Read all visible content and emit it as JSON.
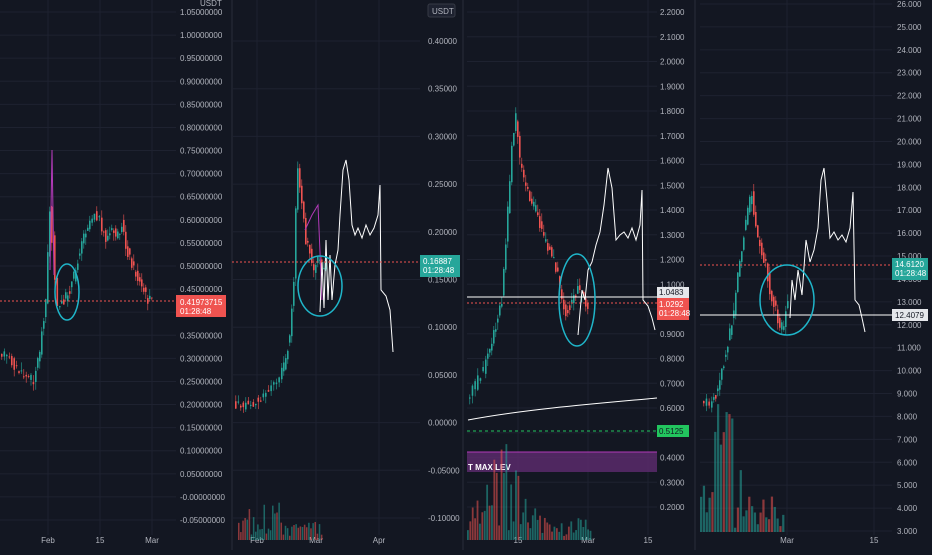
{
  "theme": {
    "background": "#131722",
    "grid": "#1e2230",
    "axis_text": "#b2b5be",
    "separator": "#2a2e39",
    "bull": "#26a69a",
    "bear": "#ef5350",
    "drawing": "#ffffff",
    "circle": "#1fb5c9",
    "ma": "#b23ab8"
  },
  "chart_data": [
    {
      "type": "candlestick",
      "title": "",
      "unit_label": "USDT",
      "y_ticks": [
        1.05,
        1.0,
        0.95,
        0.9,
        0.85,
        0.8,
        0.75,
        0.7,
        0.65,
        0.6,
        0.55,
        0.5,
        0.45,
        0.4,
        0.35,
        0.3,
        0.25,
        0.2,
        0.15,
        0.1,
        0.05,
        -0.0,
        -0.05
      ],
      "y_tick_labels": [
        "1.05000000",
        "1.00000000",
        "0.95000000",
        "0.90000000",
        "0.85000000",
        "0.80000000",
        "0.75000000",
        "0.70000000",
        "0.65000000",
        "0.60000000",
        "0.55000000",
        "0.50000000",
        "0.45000000",
        "0.40000000",
        "0.35000000",
        "0.30000000",
        "0.25000000",
        "0.20000000",
        "0.15000000",
        "0.10000000",
        "0.05000000",
        "-0.00000000",
        "-0.05000000"
      ],
      "x_labels": [
        "Feb",
        "15",
        "Mar"
      ],
      "price_line": 0.4197,
      "price_tag": {
        "value": "0.41973715",
        "countdown": "01:28:48",
        "color": "#ef5350"
      },
      "circle": {
        "cx": 0.44,
        "cy": 0.43
      }
    },
    {
      "type": "candlestick",
      "title": "",
      "unit_label": "USDT",
      "y_ticks": [
        0.4,
        0.35,
        0.3,
        0.25,
        0.2,
        0.15,
        0.1,
        0.05,
        0.0,
        -0.05,
        -0.1
      ],
      "y_tick_labels": [
        "0.40000",
        "0.35000",
        "0.30000",
        "0.25000",
        "0.20000",
        "0.15000",
        "0.10000",
        "0.05000",
        "0.00000",
        "-0.05000",
        "-0.10000"
      ],
      "x_labels": [
        "Feb",
        "Mar",
        "Apr"
      ],
      "price_line": 0.1689,
      "price_tag": {
        "value": "0.16887",
        "countdown": "01:28:48",
        "color": "#26a69a"
      },
      "circle": {
        "cx": 0.165,
        "cy": 0.14
      }
    },
    {
      "type": "candlestick",
      "title": "",
      "y_ticks": [
        2.2,
        2.1,
        2.0,
        1.9,
        1.8,
        1.7,
        1.6,
        1.5,
        1.4,
        1.3,
        1.2,
        1.1,
        1.0,
        0.9,
        0.8,
        0.7,
        0.6,
        0.5,
        0.4,
        0.3,
        0.2
      ],
      "y_tick_labels": [
        "2.2000",
        "2.1000",
        "2.0000",
        "1.9000",
        "1.8000",
        "1.7000",
        "1.6000",
        "1.5000",
        "1.4000",
        "1.3000",
        "1.2000",
        "1.1000",
        "1.0000",
        "0.9000",
        "0.8000",
        "0.7000",
        "0.6000",
        "0.5000",
        "0.4000",
        "0.3000",
        "0.2000"
      ],
      "x_labels": [
        "15",
        "Mar",
        "15"
      ],
      "price_line": 1.0292,
      "price_tag": {
        "value": "1.0292",
        "countdown": "01:28:48",
        "color": "#ef5350"
      },
      "level_tag": {
        "value": "1.0483"
      },
      "green_tag": {
        "value": "0.5125"
      },
      "band_label": "T MAX LEV",
      "circle": {
        "cx": 1.03,
        "cy": 1.0
      }
    },
    {
      "type": "candlestick",
      "title": "",
      "y_ticks": [
        26.0,
        25.0,
        24.0,
        23.0,
        22.0,
        21.0,
        20.0,
        19.0,
        18.0,
        17.0,
        16.0,
        15.0,
        14.0,
        13.0,
        12.0,
        11.0,
        10.0,
        9.0,
        8.0,
        7.0,
        6.0,
        5.0,
        4.0,
        3.0
      ],
      "y_tick_labels": [
        "26.000",
        "25.000",
        "24.000",
        "23.000",
        "22.000",
        "21.000",
        "20.000",
        "19.000",
        "18.000",
        "17.000",
        "16.000",
        "15.000",
        "14.000",
        "13.000",
        "12.000",
        "11.000",
        "10.000",
        "9.000",
        "8.000",
        "7.000",
        "6.000",
        "5.000",
        "4.000",
        "3.000"
      ],
      "x_labels": [
        "Mar",
        "15"
      ],
      "price_line": 14.612,
      "price_tag": {
        "value": "14.6120",
        "countdown": "01:28:48",
        "color": "#26a69a"
      },
      "level_tag": {
        "value": "12.4079"
      },
      "circle": {
        "cx": 13.0,
        "cy": 13.0
      }
    }
  ]
}
